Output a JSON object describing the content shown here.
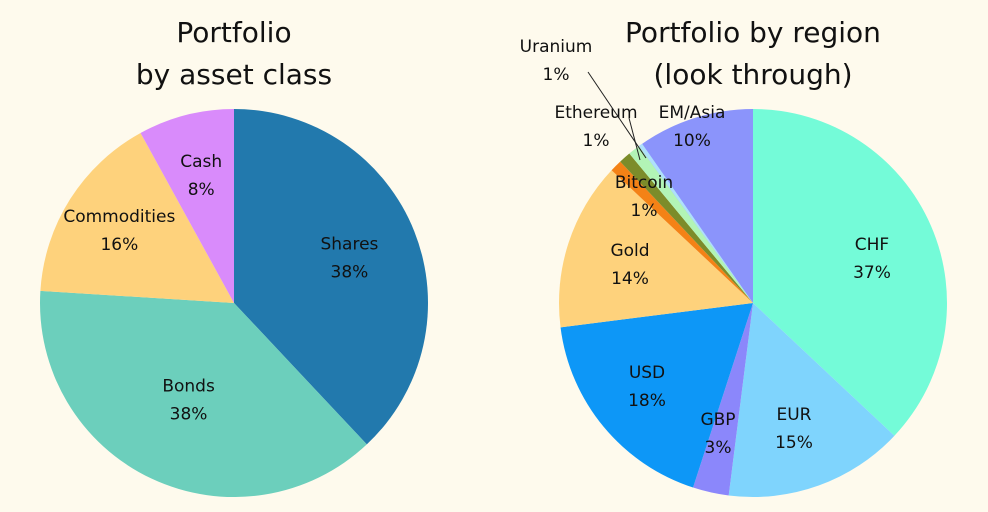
{
  "chart_data": [
    {
      "type": "pie",
      "title_lines": [
        "Portfolio",
        "by asset class"
      ],
      "slices": [
        {
          "label": "Shares",
          "value": 38,
          "pct_text": "38%",
          "color": "#2279ad"
        },
        {
          "label": "Bonds",
          "value": 38,
          "pct_text": "38%",
          "color": "#6ccfbc"
        },
        {
          "label": "Commodities",
          "value": 16,
          "pct_text": "16%",
          "color": "#fed27c"
        },
        {
          "label": "Cash",
          "value": 8,
          "pct_text": "8%",
          "color": "#d98bfb"
        }
      ]
    },
    {
      "type": "pie",
      "title_lines": [
        "Portfolio by region",
        "(look through)"
      ],
      "slices": [
        {
          "label": "CHF",
          "value": 37,
          "pct_text": "37%",
          "color": "#74fbd8"
        },
        {
          "label": "EUR",
          "value": 15,
          "pct_text": "15%",
          "color": "#7fd4fd"
        },
        {
          "label": "GBP",
          "value": 3,
          "pct_text": "3%",
          "color": "#8b87fb"
        },
        {
          "label": "USD",
          "value": 18,
          "pct_text": "18%",
          "color": "#0d97f7"
        },
        {
          "label": "Gold",
          "value": 14,
          "pct_text": "14%",
          "color": "#fed27c"
        },
        {
          "label": "Bitcoin",
          "value": 1,
          "pct_text": "1%",
          "color": "#f48216"
        },
        {
          "label": "Ethereum",
          "value": 1,
          "pct_text": "1%",
          "color": "#7c8c2a"
        },
        {
          "label": "Uranium",
          "value": 1,
          "pct_text": "1%",
          "color": "#b2f4b6"
        },
        {
          "label": "EM/Asia",
          "value": 10,
          "pct_text": "10%",
          "color": "#8b94fb"
        }
      ],
      "extra_slice_color": "#aee0fb"
    }
  ]
}
